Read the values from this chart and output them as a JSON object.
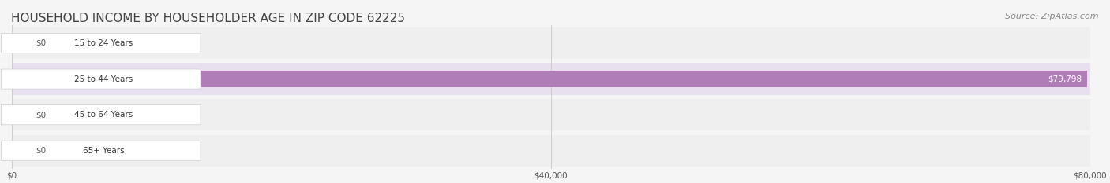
{
  "title": "HOUSEHOLD INCOME BY HOUSEHOLDER AGE IN ZIP CODE 62225",
  "source": "Source: ZipAtlas.com",
  "categories": [
    "15 to 24 Years",
    "25 to 44 Years",
    "45 to 64 Years",
    "65+ Years"
  ],
  "values": [
    0,
    79798,
    0,
    0
  ],
  "bar_colors": [
    "#a8d8d8",
    "#b07db8",
    "#5fbfbf",
    "#a0a8d8"
  ],
  "label_bg_colors": [
    "#e8f4f4",
    "#f0e8f4",
    "#e8f4f4",
    "#e8eef8"
  ],
  "bar_label_colors": [
    "#888888",
    "#ffffff",
    "#888888",
    "#888888"
  ],
  "xlim": [
    0,
    80000
  ],
  "xtick_values": [
    0,
    40000,
    80000
  ],
  "xtick_labels": [
    "$0",
    "$40,000",
    "$80,000"
  ],
  "background_color": "#f5f5f5",
  "row_bg_colors": [
    "#efefef",
    "#e8e0ef",
    "#efefef",
    "#efefef"
  ],
  "title_fontsize": 11,
  "source_fontsize": 8,
  "bar_height": 0.45,
  "figsize": [
    14.06,
    2.33
  ],
  "dpi": 100
}
